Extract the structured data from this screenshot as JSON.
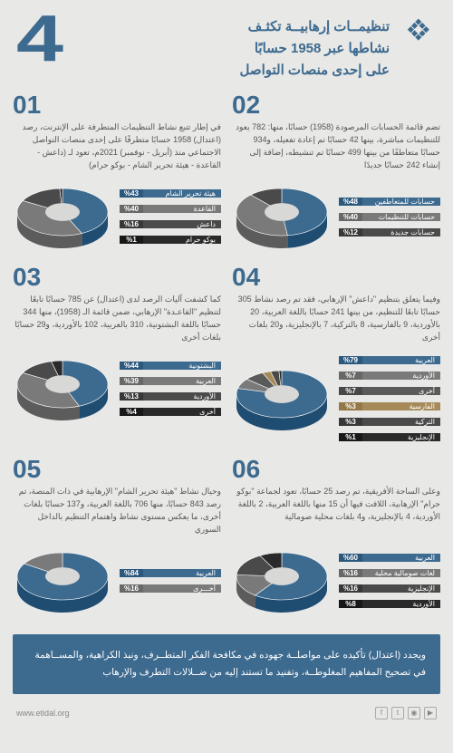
{
  "logo_color": "#3d6a8f",
  "title_lines": [
    "تنظيمــات إرهابيــة تكثـف",
    "نشاطها عبر 1958 حسابًا",
    "على إحدى منصات التواصل"
  ],
  "big_number": "4",
  "items": [
    {
      "num": "01",
      "desc": "في إطار تتبع نشاط التنظيمات المتطرفة على الإنترنت، رصد (اعتدال) 1958 حسابًا متطرفًا على إحدى منصات التواصل الاجتماعي منذ (أبريل - نوفمبر) 2021م، تعود لـ (داعش - القاعدة - هيئة تحرير الشام - بوكو حرام)",
      "slices": [
        {
          "l": "هيئة تحرير الشام",
          "p": 43,
          "c": "#3d6a8f",
          "b": "#3d6a8f"
        },
        {
          "l": "القاعدة",
          "p": 40,
          "c": "#7a7a7a",
          "b": "#7a7a7a"
        },
        {
          "l": "داعش",
          "p": 16,
          "c": "#4a4a4a",
          "b": "#4a4a4a"
        },
        {
          "l": "بوكو حرام",
          "p": 1,
          "c": "#2a2a2a",
          "b": "#2a2a2a"
        }
      ]
    },
    {
      "num": "02",
      "desc": "تضم قائمة الحسابات المرصودة (1958) حسابًا، منها: 782 يعود للتنظيمات مباشرة، بينها 42 حسابًا تم إعادة تفعيله، و934 حسابًا متعاطفًا من بينها 499 حسابًا تم تنشيطه، إضافة إلى إنشاء 242 حسابًا جديدًا",
      "slices": [
        {
          "l": "حسابات للمتعاطفين",
          "p": 48,
          "c": "#3d6a8f",
          "b": "#3d6a8f"
        },
        {
          "l": "حسابات للتنظيمات",
          "p": 40,
          "c": "#7a7a7a",
          "b": "#7a7a7a"
        },
        {
          "l": "حسابات جديدة",
          "p": 12,
          "c": "#4a4a4a",
          "b": "#4a4a4a"
        }
      ]
    },
    {
      "num": "03",
      "desc": "كما كشفت آليات الرصد لدى (اعتدال) عن 785 حسابًا تابعًا لتنظيم \"القاعـدة\" الإرهابي، ضمن قائمة الـ (1958)، منها 344 حسابًا باللغة البشتونية، 310 بالعربية، 102 بالأوردية، و29 حسابًا بلغات أخرى",
      "slices": [
        {
          "l": "البشتونية",
          "p": 44,
          "c": "#3d6a8f",
          "b": "#3d6a8f"
        },
        {
          "l": "العربية",
          "p": 39,
          "c": "#7a7a7a",
          "b": "#7a7a7a"
        },
        {
          "l": "الأوردية",
          "p": 13,
          "c": "#4a4a4a",
          "b": "#4a4a4a"
        },
        {
          "l": "أخرى",
          "p": 4,
          "c": "#2a2a2a",
          "b": "#2a2a2a"
        }
      ]
    },
    {
      "num": "04",
      "desc": "وفيما يتعلق بتنظيم \"داعش\" الإرهابي، فقد تم رصد نشاط 305 حسابًا تابعًا للتنظيم، من بينها 241 حسابًا باللغة العربية، 20 بالأوردية، 9 بالفارسية، 8 بالتركية، 7 بالإنجليزية، و20 بلغات أخرى",
      "slices": [
        {
          "l": "العربية",
          "p": 79,
          "c": "#3d6a8f",
          "b": "#3d6a8f"
        },
        {
          "l": "الأوردية",
          "p": 7,
          "c": "#7a7a7a",
          "b": "#7a7a7a"
        },
        {
          "l": "أخرى",
          "p": 7,
          "c": "#5a5a5a",
          "b": "#5a5a5a"
        },
        {
          "l": "الفارسية",
          "p": 3,
          "c": "#a68a5a",
          "b": "#a68a5a"
        },
        {
          "l": "التركية",
          "p": 3,
          "c": "#4a4a4a",
          "b": "#4a4a4a"
        },
        {
          "l": "الإنجليزية",
          "p": 1,
          "c": "#2a2a2a",
          "b": "#2a2a2a"
        }
      ]
    },
    {
      "num": "05",
      "desc": "وحيال نشاط \"هيئة تحرير الشام\" الإرهابية في ذات المنصة، تم رصد 843 حسابًا، منها 706 باللغة العربية، و137 حسابًا بلغات أخرى، ما يعكس مستوى نشاط واهتمام التنظيم بالداخل السوري",
      "slices": [
        {
          "l": "العربية",
          "p": 84,
          "c": "#3d6a8f",
          "b": "#3d6a8f"
        },
        {
          "l": "أخـــرى",
          "p": 16,
          "c": "#7a7a7a",
          "b": "#7a7a7a"
        }
      ]
    },
    {
      "num": "06",
      "desc": "وعلى الساحة الأفريقية، تم رصد 25 حسابًا، تعود لجماعة \"بوكو حرام\" الإرهابية، اللافت فيها أن 15 منها باللغة العربية، 2 باللغة الأوردية، 4 بالإنجليزية، و4 بلغات محلية صومالية",
      "slices": [
        {
          "l": "العربية",
          "p": 60,
          "c": "#3d6a8f",
          "b": "#3d6a8f"
        },
        {
          "l": "لغات صومالية محلية",
          "p": 16,
          "c": "#7a7a7a",
          "b": "#7a7a7a"
        },
        {
          "l": "الإنجليزية",
          "p": 16,
          "c": "#4a4a4a",
          "b": "#4a4a4a"
        },
        {
          "l": "الأوردية",
          "p": 8,
          "c": "#2a2a2a",
          "b": "#2a2a2a"
        }
      ]
    }
  ],
  "footer": "ويجدد (اعتدال) تأكيده على مواصلــة جهوده في مكافحة الفكر المتطــرف، ونبذ الكراهية، والمســاهمة في تصحيح المفاهيم المغلوطــة، وتفنيد ما تستند إليه من ضــلالات التطرف والإرهاب",
  "website": "www.etidal.org",
  "pie_side": "#2a4a66",
  "pie_inner": "#d8d8d6"
}
